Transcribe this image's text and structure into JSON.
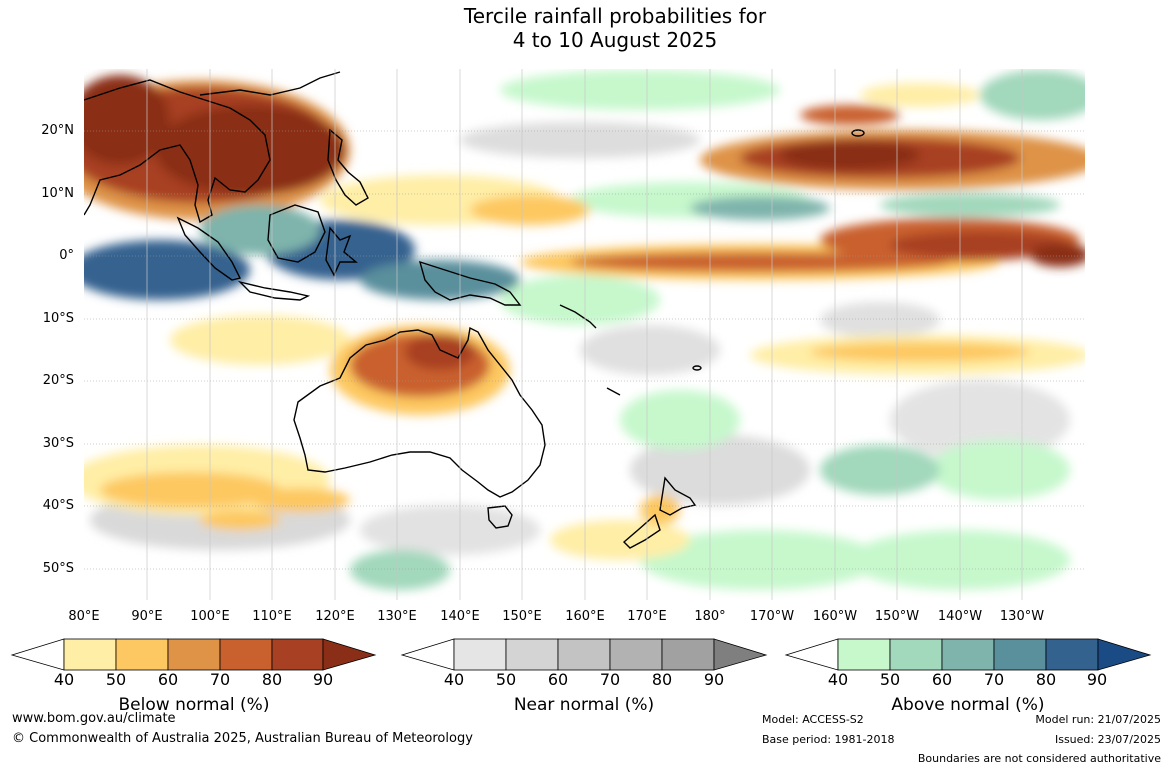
{
  "title": {
    "line1": "Tercile rainfall probabilities for",
    "line2": "4 to 10 August 2025"
  },
  "map": {
    "lat_labels": [
      "20°N",
      "10°N",
      "0°",
      "10°S",
      "20°S",
      "30°S",
      "40°S",
      "50°S"
    ],
    "lon_labels": [
      "80°E",
      "90°E",
      "100°E",
      "110°E",
      "120°E",
      "130°E",
      "140°E",
      "150°E",
      "160°E",
      "170°E",
      "180°",
      "170°W",
      "160°W",
      "150°W",
      "140°W",
      "130°W"
    ]
  },
  "colorbars": [
    {
      "name": "below",
      "title": "Below normal (%)",
      "ticks": [
        "40",
        "50",
        "60",
        "70",
        "80",
        "90"
      ],
      "colors": [
        "#ffeea6",
        "#fdc861",
        "#de9346",
        "#c9612f",
        "#a84124",
        "#8a2e18"
      ]
    },
    {
      "name": "near",
      "title": "Near normal (%)",
      "ticks": [
        "40",
        "50",
        "60",
        "70",
        "80",
        "90"
      ],
      "colors": [
        "#e5e5e5",
        "#d4d4d4",
        "#c3c3c3",
        "#b2b2b2",
        "#a1a1a1",
        "#7f7f7f"
      ]
    },
    {
      "name": "above",
      "title": "Above normal (%)",
      "ticks": [
        "40",
        "50",
        "60",
        "70",
        "80",
        "90"
      ],
      "colors": [
        "#c6f8cc",
        "#a2d8bc",
        "#7eb4ac",
        "#5a8f9c",
        "#34628f",
        "#1b4b84"
      ]
    }
  ],
  "footer": {
    "website": "www.bom.gov.au/climate",
    "copyright": "© Commonwealth of Australia 2025, Australian Bureau of Meteorology",
    "model": "Model: ACCESS-S2",
    "base_period": "Base period: 1981-2018",
    "model_run": "Model run: 21/07/2025",
    "issued": "Issued: 23/07/2025",
    "disclaimer": "Boundaries are not considered authoritative"
  }
}
